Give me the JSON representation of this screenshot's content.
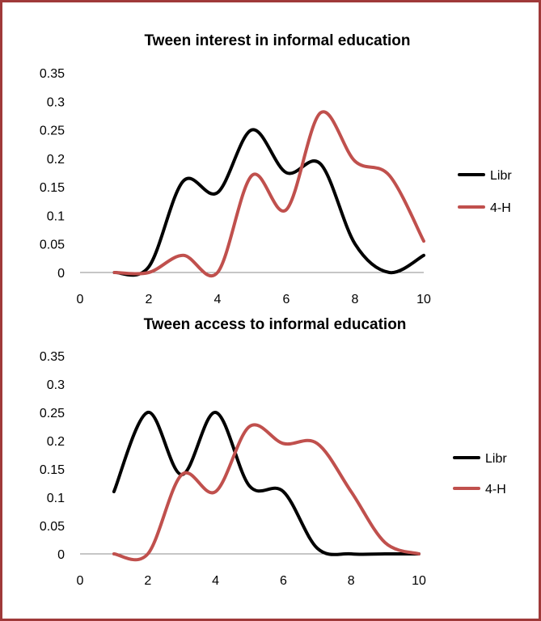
{
  "chart_data": [
    {
      "type": "line",
      "title": "Tween interest in informal education",
      "xlim": [
        0,
        10
      ],
      "ylim": [
        0,
        0.35
      ],
      "x_ticks": [
        "0",
        "2",
        "4",
        "6",
        "8",
        "10"
      ],
      "y_ticks": [
        "0",
        "0.05",
        "0.1",
        "0.15",
        "0.2",
        "0.25",
        "0.3",
        "0.35"
      ],
      "grid": false,
      "legend_position": "right",
      "series": [
        {
          "name": "Libr",
          "color": "#000000",
          "x": [
            1,
            2,
            3,
            4,
            5,
            6,
            7,
            8,
            9,
            10
          ],
          "y": [
            0,
            0.01,
            0.16,
            0.14,
            0.25,
            0.175,
            0.19,
            0.05,
            0,
            0.03
          ]
        },
        {
          "name": "4-H",
          "color": "#c0504d",
          "x": [
            1,
            2,
            3,
            4,
            5,
            6,
            7,
            8,
            9,
            10
          ],
          "y": [
            0,
            0,
            0.03,
            0,
            0.17,
            0.11,
            0.28,
            0.195,
            0.17,
            0.055
          ]
        }
      ]
    },
    {
      "type": "line",
      "title": "Tween access to informal education",
      "xlim": [
        0,
        10
      ],
      "ylim": [
        0,
        0.35
      ],
      "x_ticks": [
        "0",
        "2",
        "4",
        "6",
        "8",
        "10"
      ],
      "y_ticks": [
        "0",
        "0.05",
        "0.1",
        "0.15",
        "0.2",
        "0.25",
        "0.3",
        "0.35"
      ],
      "grid": false,
      "legend_position": "right",
      "series": [
        {
          "name": "Libr",
          "color": "#000000",
          "x": [
            1,
            2,
            3,
            4,
            5,
            6,
            7,
            8,
            9,
            10
          ],
          "y": [
            0.11,
            0.25,
            0.14,
            0.25,
            0.12,
            0.11,
            0.01,
            0,
            0,
            0
          ]
        },
        {
          "name": "4-H",
          "color": "#c0504d",
          "x": [
            1,
            2,
            3,
            4,
            5,
            6,
            7,
            8,
            9,
            10
          ],
          "y": [
            0,
            0,
            0.14,
            0.11,
            0.225,
            0.195,
            0.195,
            0.11,
            0.02,
            0
          ]
        }
      ]
    }
  ]
}
